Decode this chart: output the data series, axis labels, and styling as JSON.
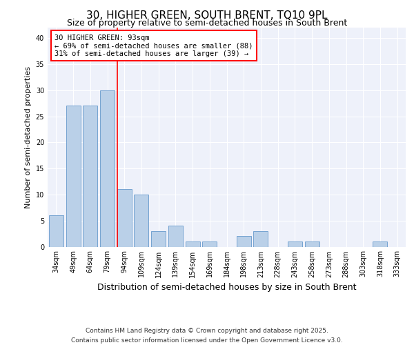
{
  "title1": "30, HIGHER GREEN, SOUTH BRENT, TQ10 9PL",
  "title2": "Size of property relative to semi-detached houses in South Brent",
  "xlabel": "Distribution of semi-detached houses by size in South Brent",
  "ylabel": "Number of semi-detached properties",
  "categories": [
    "34sqm",
    "49sqm",
    "64sqm",
    "79sqm",
    "94sqm",
    "109sqm",
    "124sqm",
    "139sqm",
    "154sqm",
    "169sqm",
    "184sqm",
    "198sqm",
    "213sqm",
    "228sqm",
    "243sqm",
    "258sqm",
    "273sqm",
    "288sqm",
    "303sqm",
    "318sqm",
    "333sqm"
  ],
  "values": [
    6,
    27,
    27,
    30,
    11,
    10,
    3,
    4,
    1,
    1,
    0,
    2,
    3,
    0,
    1,
    1,
    0,
    0,
    0,
    1,
    0
  ],
  "bar_color": "#bad0e8",
  "bar_edge_color": "#6699cc",
  "property_line_index": 4,
  "property_sqm": 93,
  "pct_smaller": 69,
  "count_smaller": 88,
  "pct_larger": 31,
  "count_larger": 39,
  "annotation_text": "30 HIGHER GREEN: 93sqm\n← 69% of semi-detached houses are smaller (88)\n31% of semi-detached houses are larger (39) →",
  "ylim": [
    0,
    42
  ],
  "yticks": [
    0,
    5,
    10,
    15,
    20,
    25,
    30,
    35,
    40
  ],
  "bg_color": "#eef1fa",
  "footer_text": "Contains HM Land Registry data © Crown copyright and database right 2025.\nContains public sector information licensed under the Open Government Licence v3.0.",
  "title1_fontsize": 11,
  "title2_fontsize": 9,
  "annotation_fontsize": 7.5,
  "footer_fontsize": 6.5,
  "ylabel_fontsize": 8,
  "xlabel_fontsize": 9
}
